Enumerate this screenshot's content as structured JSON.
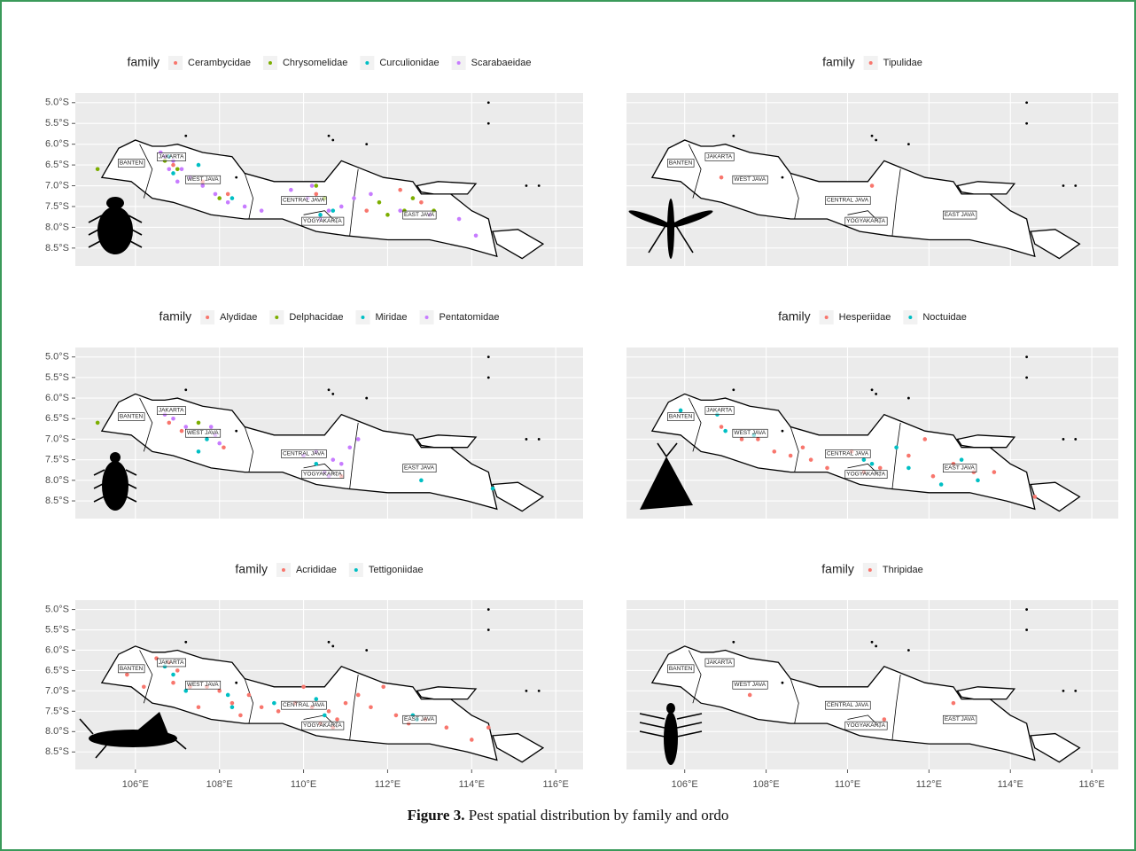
{
  "chart_data": [
    {
      "type": "scatter",
      "legend_title": "family",
      "grid": true,
      "xlim": [
        104.57,
        116.65
      ],
      "ylim": [
        -8.93,
        -4.77
      ],
      "yticks": [
        {
          "value": -5.0,
          "label": "5.0°S"
        },
        {
          "value": -5.5,
          "label": "5.5°S"
        },
        {
          "value": -6.0,
          "label": "6.0°S"
        },
        {
          "value": -6.5,
          "label": "6.5°S"
        },
        {
          "value": -7.0,
          "label": "7.0°S"
        },
        {
          "value": -7.5,
          "label": "7.5°S"
        },
        {
          "value": -8.0,
          "label": "8.0°S"
        },
        {
          "value": -8.5,
          "label": "8.5°S"
        }
      ],
      "region_labels": [
        "BANTEN",
        "JAKARTA",
        "WEST JAVA",
        "CENTRAL JAVA",
        "YOGYAKARTA",
        "EAST JAVA"
      ],
      "series": [
        {
          "name": "Cerambycidae",
          "color": "#F8766D",
          "x": [
            106.9,
            107.6,
            110.3,
            112.3,
            112.8,
            111.5,
            108.2
          ],
          "values": [
            -6.5,
            -6.9,
            -7.2,
            -7.1,
            -7.4,
            -7.6,
            -7.2
          ]
        },
        {
          "name": "Chrysomelidae",
          "color": "#7CAE00",
          "x": [
            105.1,
            106.7,
            107.0,
            110.5,
            111.8,
            112.0,
            112.4,
            113.1,
            112.6,
            110.3,
            108.0
          ],
          "values": [
            -6.6,
            -6.4,
            -6.6,
            -7.3,
            -7.4,
            -7.7,
            -7.6,
            -7.6,
            -7.3,
            -7.0,
            -7.3
          ]
        },
        {
          "name": "Curculionidae",
          "color": "#00BFC4",
          "x": [
            106.8,
            107.5,
            108.3,
            110.7,
            110.4,
            106.9
          ],
          "values": [
            -6.3,
            -6.5,
            -7.3,
            -7.6,
            -7.7,
            -6.7
          ]
        },
        {
          "name": "Scarabaeidae",
          "color": "#C77CFF",
          "x": [
            106.7,
            106.9,
            107.1,
            106.8,
            107.3,
            107.6,
            107.9,
            108.2,
            106.6,
            107.0,
            108.6,
            109.0,
            110.1,
            110.4,
            110.6,
            110.9,
            111.2,
            111.6,
            112.3,
            113.0,
            113.7,
            114.1,
            110.2,
            109.7
          ],
          "values": [
            -6.3,
            -6.4,
            -6.6,
            -6.6,
            -6.8,
            -7.0,
            -7.2,
            -7.4,
            -6.2,
            -6.9,
            -7.5,
            -7.6,
            -7.3,
            -7.8,
            -7.6,
            -7.5,
            -7.3,
            -7.2,
            -7.6,
            -7.7,
            -7.8,
            -8.2,
            -7.0,
            -7.1
          ]
        }
      ]
    },
    {
      "type": "scatter",
      "legend_title": "family",
      "grid": true,
      "xlim": [
        104.57,
        116.65
      ],
      "ylim": [
        -8.93,
        -4.77
      ],
      "region_labels": [
        "BANTEN",
        "JAKARTA",
        "WEST JAVA",
        "CENTRAL JAVA",
        "YOGYAKARTA",
        "EAST JAVA"
      ],
      "series": [
        {
          "name": "Tipulidae",
          "color": "#F8766D",
          "x": [
            106.9,
            110.6
          ],
          "values": [
            -6.8,
            -7.0
          ]
        }
      ]
    },
    {
      "type": "scatter",
      "legend_title": "family",
      "grid": true,
      "xlim": [
        104.57,
        116.65
      ],
      "ylim": [
        -8.93,
        -4.77
      ],
      "yticks": [
        {
          "value": -5.0,
          "label": "5.0°S"
        },
        {
          "value": -5.5,
          "label": "5.5°S"
        },
        {
          "value": -6.0,
          "label": "6.0°S"
        },
        {
          "value": -6.5,
          "label": "6.5°S"
        },
        {
          "value": -7.0,
          "label": "7.0°S"
        },
        {
          "value": -7.5,
          "label": "7.5°S"
        },
        {
          "value": -8.0,
          "label": "8.0°S"
        },
        {
          "value": -8.5,
          "label": "8.5°S"
        }
      ],
      "region_labels": [
        "BANTEN",
        "JAKARTA",
        "WEST JAVA",
        "CENTRAL JAVA",
        "YOGYAKARTA",
        "EAST JAVA"
      ],
      "series": [
        {
          "name": "Alydidae",
          "color": "#F8766D",
          "x": [
            106.8,
            107.1,
            110.9,
            108.1
          ],
          "values": [
            -6.6,
            -6.8,
            -7.9,
            -7.2
          ]
        },
        {
          "name": "Delphacidae",
          "color": "#7CAE00",
          "x": [
            105.1,
            107.5
          ],
          "values": [
            -6.6,
            -6.6
          ]
        },
        {
          "name": "Miridae",
          "color": "#00BFC4",
          "x": [
            107.7,
            107.5,
            112.8,
            114.5,
            110.3
          ],
          "values": [
            -7.0,
            -7.3,
            -8.0,
            -8.2,
            -7.6
          ]
        },
        {
          "name": "Pentatomidae",
          "color": "#C77CFF",
          "x": [
            106.7,
            107.2,
            107.8,
            107.9,
            106.9,
            108.0,
            110.3,
            110.7,
            110.5,
            111.1,
            110.0,
            110.9,
            111.3,
            110.6
          ],
          "values": [
            -6.4,
            -6.7,
            -6.7,
            -6.9,
            -6.5,
            -7.1,
            -7.3,
            -7.5,
            -7.8,
            -7.2,
            -7.4,
            -7.6,
            -7.0,
            -7.9
          ]
        }
      ]
    },
    {
      "type": "scatter",
      "legend_title": "family",
      "grid": true,
      "xlim": [
        104.57,
        116.65
      ],
      "ylim": [
        -8.93,
        -4.77
      ],
      "region_labels": [
        "BANTEN",
        "JAKARTA",
        "WEST JAVA",
        "CENTRAL JAVA",
        "YOGYAKARTA",
        "EAST JAVA"
      ],
      "series": [
        {
          "name": "Hesperiidae",
          "color": "#F8766D",
          "x": [
            106.9,
            107.4,
            107.8,
            108.2,
            108.6,
            109.1,
            109.5,
            110.1,
            110.4,
            110.8,
            111.5,
            111.9,
            112.6,
            113.1,
            113.6,
            114.6,
            112.1,
            108.9
          ],
          "values": [
            -6.7,
            -7.0,
            -7.0,
            -7.3,
            -7.4,
            -7.5,
            -7.7,
            -7.3,
            -7.8,
            -7.7,
            -7.4,
            -7.0,
            -7.6,
            -7.8,
            -7.8,
            -8.4,
            -7.9,
            -7.2
          ]
        },
        {
          "name": "Noctuidae",
          "color": "#00BFC4",
          "x": [
            105.9,
            106.8,
            107.0,
            107.7,
            110.6,
            110.4,
            111.2,
            111.5,
            112.8,
            113.2,
            112.3
          ],
          "values": [
            -6.3,
            -6.4,
            -6.8,
            -6.9,
            -7.6,
            -7.5,
            -7.2,
            -7.7,
            -7.5,
            -8.0,
            -8.1
          ]
        }
      ]
    },
    {
      "type": "scatter",
      "legend_title": "family",
      "grid": true,
      "xlim": [
        104.57,
        116.65
      ],
      "ylim": [
        -8.93,
        -4.77
      ],
      "yticks": [
        {
          "value": -5.0,
          "label": "5.0°S"
        },
        {
          "value": -5.5,
          "label": "5.5°S"
        },
        {
          "value": -6.0,
          "label": "6.0°S"
        },
        {
          "value": -6.5,
          "label": "6.5°S"
        },
        {
          "value": -7.0,
          "label": "7.0°S"
        },
        {
          "value": -7.5,
          "label": "7.5°S"
        },
        {
          "value": -8.0,
          "label": "8.0°S"
        },
        {
          "value": -8.5,
          "label": "8.5°S"
        }
      ],
      "xticks": [
        {
          "value": 106,
          "label": "106°E"
        },
        {
          "value": 108,
          "label": "108°E"
        },
        {
          "value": 110,
          "label": "110°E"
        },
        {
          "value": 112,
          "label": "112°E"
        },
        {
          "value": 114,
          "label": "114°E"
        },
        {
          "value": 116,
          "label": "116°E"
        }
      ],
      "region_labels": [
        "BANTEN",
        "JAKARTA",
        "WEST JAVA",
        "CENTRAL JAVA",
        "YOGYAKARTA",
        "EAST JAVA"
      ],
      "series": [
        {
          "name": "Acrididae",
          "color": "#F8766D",
          "x": [
            106.5,
            106.8,
            107.0,
            106.9,
            107.3,
            107.7,
            108.0,
            108.3,
            108.7,
            109.0,
            109.4,
            109.8,
            110.2,
            110.4,
            110.6,
            110.8,
            111.0,
            111.3,
            111.6,
            111.9,
            112.2,
            112.5,
            112.9,
            113.4,
            114.0,
            114.4,
            106.2,
            105.8,
            107.5,
            108.5,
            110.0,
            110.7
          ],
          "values": [
            -6.2,
            -6.3,
            -6.5,
            -6.8,
            -6.9,
            -6.9,
            -7.0,
            -7.3,
            -7.1,
            -7.4,
            -7.5,
            -7.3,
            -7.4,
            -7.8,
            -7.5,
            -7.7,
            -7.3,
            -7.1,
            -7.4,
            -6.9,
            -7.6,
            -7.8,
            -7.7,
            -7.9,
            -8.2,
            -7.9,
            -6.9,
            -6.6,
            -7.4,
            -7.6,
            -6.9,
            -7.9
          ]
        },
        {
          "name": "Tettigoniidae",
          "color": "#00BFC4",
          "x": [
            106.7,
            106.9,
            107.2,
            108.2,
            108.3,
            109.3,
            110.5,
            112.6,
            112.7,
            110.3
          ],
          "values": [
            -6.4,
            -6.6,
            -7.0,
            -7.1,
            -7.4,
            -7.3,
            -7.6,
            -7.6,
            -7.7,
            -7.2
          ]
        }
      ]
    },
    {
      "type": "scatter",
      "legend_title": "family",
      "grid": true,
      "xlim": [
        104.57,
        116.65
      ],
      "ylim": [
        -8.93,
        -4.77
      ],
      "xticks": [
        {
          "value": 106,
          "label": "106°E"
        },
        {
          "value": 108,
          "label": "108°E"
        },
        {
          "value": 110,
          "label": "110°E"
        },
        {
          "value": 112,
          "label": "112°E"
        },
        {
          "value": 114,
          "label": "114°E"
        },
        {
          "value": 116,
          "label": "116°E"
        }
      ],
      "region_labels": [
        "BANTEN",
        "JAKARTA",
        "WEST JAVA",
        "CENTRAL JAVA",
        "YOGYAKARTA",
        "EAST JAVA"
      ],
      "series": [
        {
          "name": "Thripidae",
          "color": "#F8766D",
          "x": [
            107.6,
            110.9,
            112.6
          ],
          "values": [
            -7.1,
            -7.7,
            -7.3
          ]
        }
      ]
    }
  ],
  "caption": {
    "label": "Figure 3.",
    "text": "Pest spatial distribution by family and ordo"
  }
}
